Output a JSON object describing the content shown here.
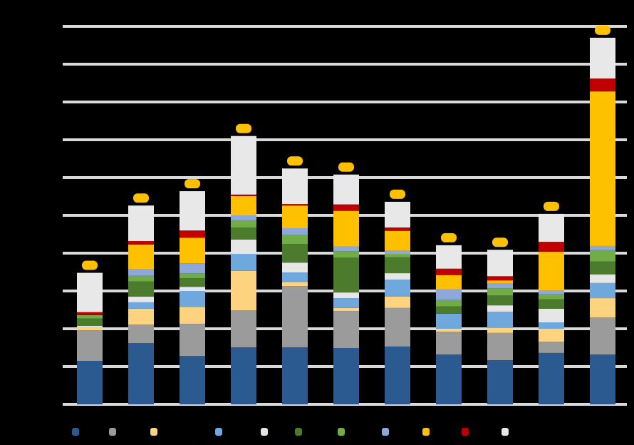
{
  "chart_data": {
    "type": "stacked-bar",
    "categories": [
      null,
      null,
      null,
      null,
      null,
      null,
      null,
      null,
      null,
      null,
      null
    ],
    "series": [
      {
        "color": "#2a5a8f",
        "values": [
          1.15,
          1.62,
          1.28,
          1.51,
          1.51,
          1.49,
          1.53,
          1.32,
          1.17,
          1.36,
          1.32
        ]
      },
      {
        "color": "#9b9b9b",
        "values": [
          0.81,
          0.49,
          0.85,
          0.98,
          1.62,
          0.98,
          1.02,
          0.6,
          0.72,
          0.3,
          0.98
        ]
      },
      {
        "color": "#fdd37f",
        "values": [
          0.08,
          0.42,
          0.45,
          1.04,
          0.11,
          0.08,
          0.3,
          0.08,
          0.13,
          0.34,
          0.51
        ]
      },
      {
        "color": "#6fa8dc",
        "values": [
          0,
          0.17,
          0.42,
          0.45,
          0.25,
          0.26,
          0.45,
          0.4,
          0.43,
          0.17,
          0.4
        ]
      },
      {
        "color": "#e6e6e6",
        "values": [
          0.04,
          0.15,
          0.11,
          0.38,
          0.26,
          0.15,
          0.17,
          0,
          0.17,
          0.36,
          0.23
        ]
      },
      {
        "color": "#4b7b2b",
        "values": [
          0.19,
          0.4,
          0.23,
          0.32,
          0.49,
          0.92,
          0.42,
          0.19,
          0.26,
          0.25,
          0.34
        ]
      },
      {
        "color": "#70ad47",
        "values": [
          0.09,
          0.15,
          0.13,
          0.19,
          0.25,
          0.17,
          0.09,
          0.17,
          0.19,
          0.13,
          0.3
        ]
      },
      {
        "color": "#8fa8dc",
        "values": [
          0,
          0.17,
          0.26,
          0.13,
          0.17,
          0.13,
          0.08,
          0.28,
          0.13,
          0.11,
          0.11
        ]
      },
      {
        "color": "#ffc000",
        "values": [
          0,
          0.66,
          0.68,
          0.51,
          0.6,
          0.94,
          0.53,
          0.38,
          0.08,
          1.02,
          4.09
        ]
      },
      {
        "color": "#c00000",
        "values": [
          0.08,
          0.09,
          0.19,
          0.04,
          0.04,
          0.17,
          0.09,
          0.17,
          0.11,
          0.26,
          0.34
        ]
      },
      {
        "color": "#e8e8e8",
        "values": [
          1.04,
          0.94,
          1.04,
          1.55,
          0.94,
          0.79,
          0.68,
          0.62,
          0.7,
          0.74,
          1.08
        ]
      }
    ],
    "ylim": [
      0,
      10
    ],
    "yticks": [
      0,
      1,
      2,
      3,
      4,
      5,
      6,
      7,
      8,
      9,
      10
    ],
    "grid": true,
    "grid_color": "#d9d9d9"
  }
}
